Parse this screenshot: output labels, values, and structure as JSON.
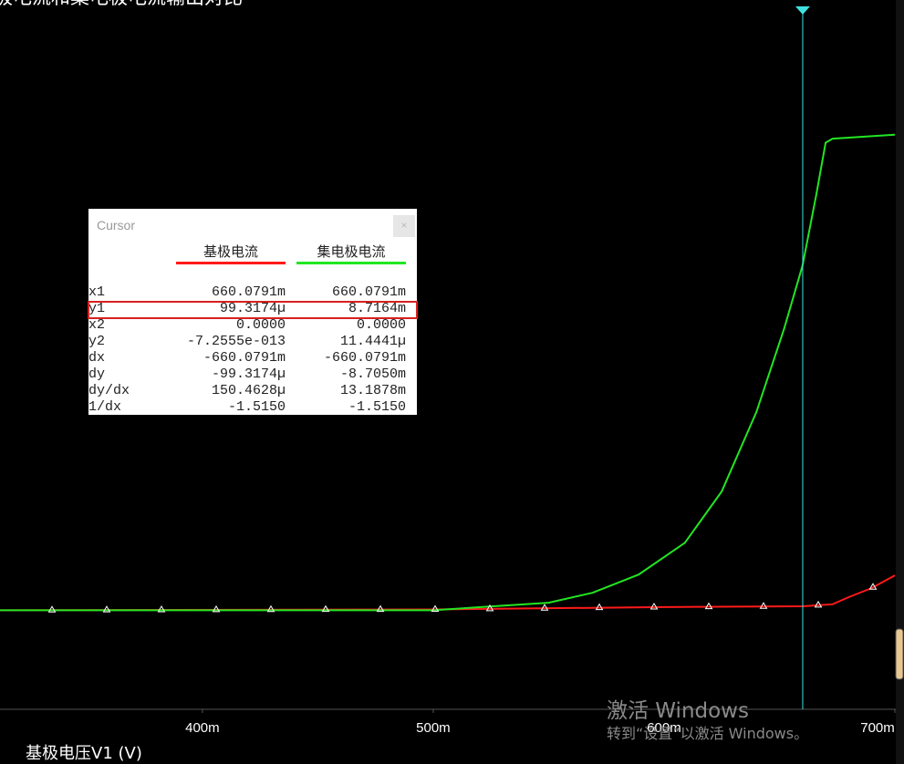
{
  "chart_data": {
    "type": "line",
    "title": "基极电流和集电极电流输出对比",
    "x_label": "基极电压V1 (V)",
    "xlim": [
      0.3123,
      0.7004
    ],
    "xticks": [
      {
        "value": 0.4,
        "label": "400m"
      },
      {
        "value": 0.5,
        "label": "500m"
      },
      {
        "value": 0.6,
        "label": "600m"
      },
      {
        "value": 0.7,
        "label": "700m"
      }
    ],
    "ylim": [
      -0.0025,
      0.0154
    ],
    "grid": false,
    "cursor": 0.6600791,
    "cursor_color": "#40e0e0",
    "series": [
      {
        "name": "基极电流",
        "color": "#ff1a1a",
        "x": [
          0.3123,
          0.5,
          0.6,
          0.66,
          0.673,
          0.68,
          0.69,
          0.7
        ],
        "values": [
          0,
          2e-05,
          8e-05,
          0.0001,
          0.00015,
          0.00033,
          0.00056,
          0.00088
        ]
      },
      {
        "name": "集电极电流",
        "color": "#22e622",
        "x": [
          0.3123,
          0.5,
          0.526,
          0.55,
          0.569,
          0.589,
          0.609,
          0.625,
          0.64,
          0.652,
          0.66,
          0.666,
          0.67,
          0.673,
          0.7
        ],
        "values": [
          0,
          0,
          0.0001,
          0.00019,
          0.00044,
          0.0009,
          0.0017,
          0.003,
          0.005,
          0.0071,
          0.0087,
          0.0105,
          0.0118,
          0.0119,
          0.012
        ]
      }
    ]
  },
  "cursor_panel": {
    "title": "Cursor",
    "rows": [
      [
        "x1",
        "660.0791m",
        "660.0791m"
      ],
      [
        "y1",
        "99.3174µ",
        "8.7164m"
      ],
      [
        "x2",
        "0.0000",
        "0.0000"
      ],
      [
        "y2",
        "-7.2555e-013",
        "11.4441µ"
      ],
      [
        "dx",
        "-660.0791m",
        "-660.0791m"
      ],
      [
        "dy",
        "-99.3174µ",
        "-8.7050m"
      ],
      [
        "dy/dx",
        "150.4628µ",
        "13.1878m"
      ],
      [
        "1/dx",
        "-1.5150",
        "-1.5150"
      ]
    ]
  },
  "watermark": {
    "title": "激活 Windows",
    "subtitle": "转到“设置”以激活 Windows。"
  }
}
